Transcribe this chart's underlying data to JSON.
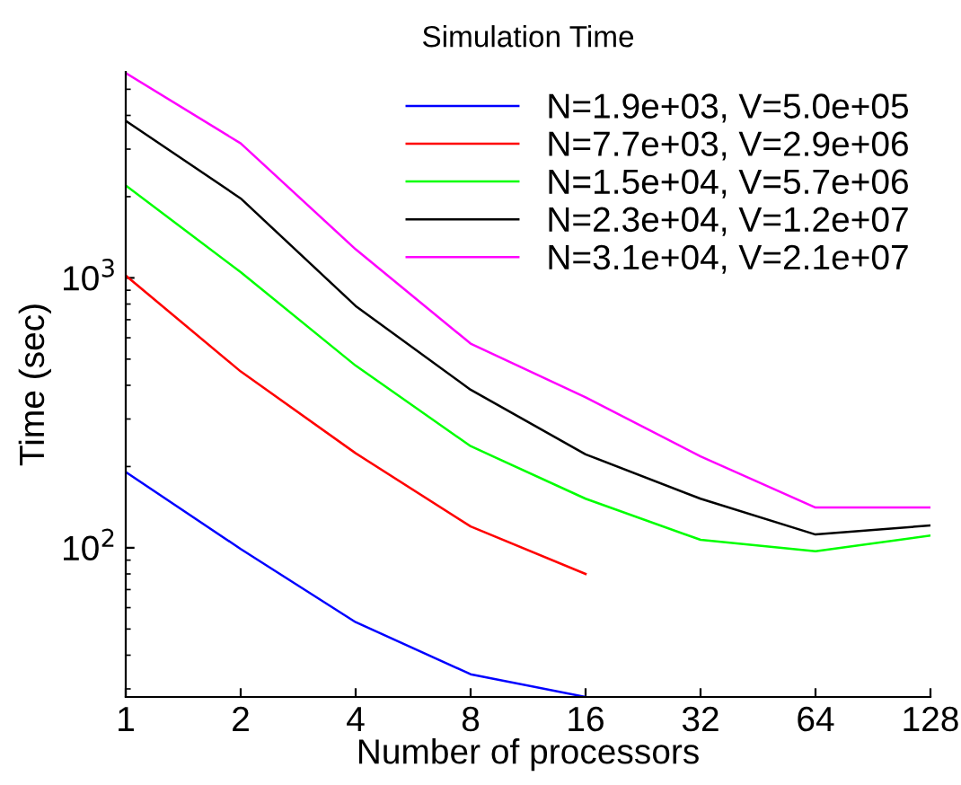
{
  "chart_data": {
    "type": "line",
    "title": "Simulation Time",
    "xlabel": "Number of processors",
    "ylabel": "Time (sec)",
    "x": [
      1,
      2,
      4,
      8,
      16,
      32,
      64,
      128
    ],
    "series": [
      {
        "name": "N=1.9e+03, V=5.0e+05",
        "color": "#0000ff",
        "values": [
          191,
          99,
          53,
          34,
          28,
          null,
          null,
          null
        ]
      },
      {
        "name": "N=7.7e+03, V=2.9e+06",
        "color": "#ff0000",
        "values": [
          1020,
          450,
          224,
          120,
          80,
          null,
          null,
          null
        ]
      },
      {
        "name": "N=1.5e+04, V=5.7e+06",
        "color": "#00ff00",
        "values": [
          2200,
          1050,
          473,
          238,
          152,
          107,
          97,
          111
        ]
      },
      {
        "name": "N=2.3e+04, V=1.2e+07",
        "color": "#000000",
        "values": [
          3820,
          1970,
          787,
          385,
          222,
          152,
          112,
          121
        ]
      },
      {
        "name": "N=3.1e+04, V=2.1e+07",
        "color": "#ff00ff",
        "values": [
          5740,
          3150,
          1276,
          571,
          361,
          218,
          141,
          141
        ]
      }
    ],
    "log": "xy",
    "xlim": [
      1,
      128
    ],
    "ylim": [
      28,
      5800
    ],
    "xticks": [
      1,
      2,
      4,
      8,
      16,
      32,
      64,
      128
    ],
    "yticks": [
      {
        "value": 100,
        "label": "10$^{2}$"
      },
      {
        "value": 1000,
        "label": "10$^{3}$"
      }
    ],
    "grid": false,
    "legend": "top right",
    "marker": "none",
    "line_style": "solid"
  }
}
